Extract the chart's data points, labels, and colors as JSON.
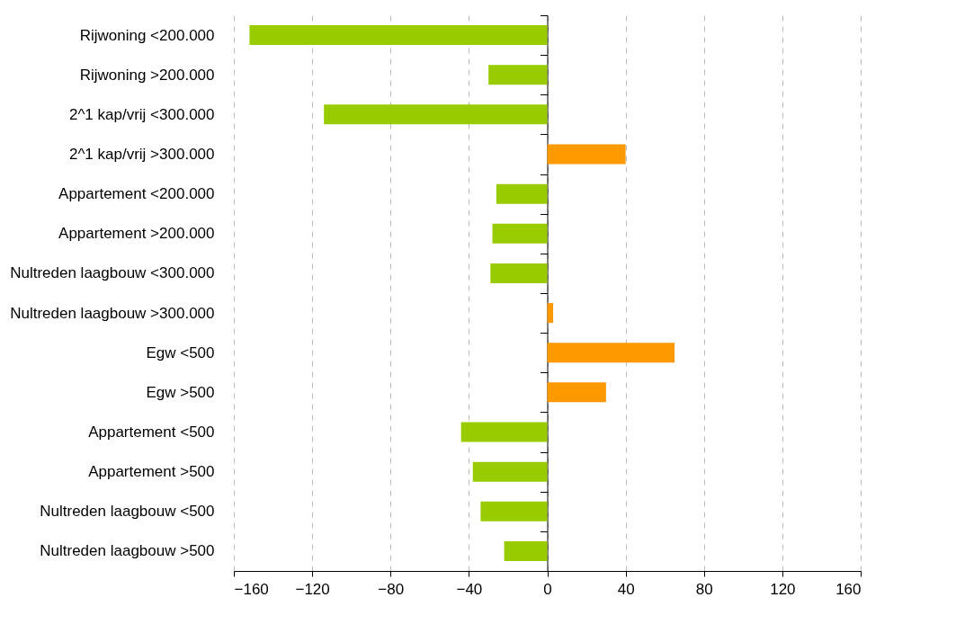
{
  "chart_data": {
    "type": "bar",
    "orientation": "horizontal",
    "categories": [
      "Rijwoning <200.000",
      "Rijwoning >200.000",
      "2^1 kap/vrij <300.000",
      "2^1 kap/vrij >300.000",
      "Appartement <200.000",
      "Appartement >200.000",
      "Nultreden laagbouw <300.000",
      "Nultreden laagbouw >300.000",
      "Egw <500",
      "Egw >500",
      "Appartement <500",
      "Appartement >500",
      "Nultreden laagbouw <500",
      "Nultreden laagbouw >500"
    ],
    "values": [
      -152,
      -30,
      -114,
      40,
      -26,
      -28,
      -29,
      3,
      65,
      30,
      -44,
      -38,
      -34,
      -22
    ],
    "colors": [
      "#99cc00",
      "#99cc00",
      "#99cc00",
      "#ff9900",
      "#99cc00",
      "#99cc00",
      "#99cc00",
      "#ff9900",
      "#ff9900",
      "#ff9900",
      "#99cc00",
      "#99cc00",
      "#99cc00",
      "#99cc00"
    ],
    "xlim": [
      -160,
      160
    ],
    "xticks": [
      -160,
      -120,
      -80,
      -40,
      0,
      40,
      80,
      120,
      160
    ],
    "grid": "x"
  }
}
